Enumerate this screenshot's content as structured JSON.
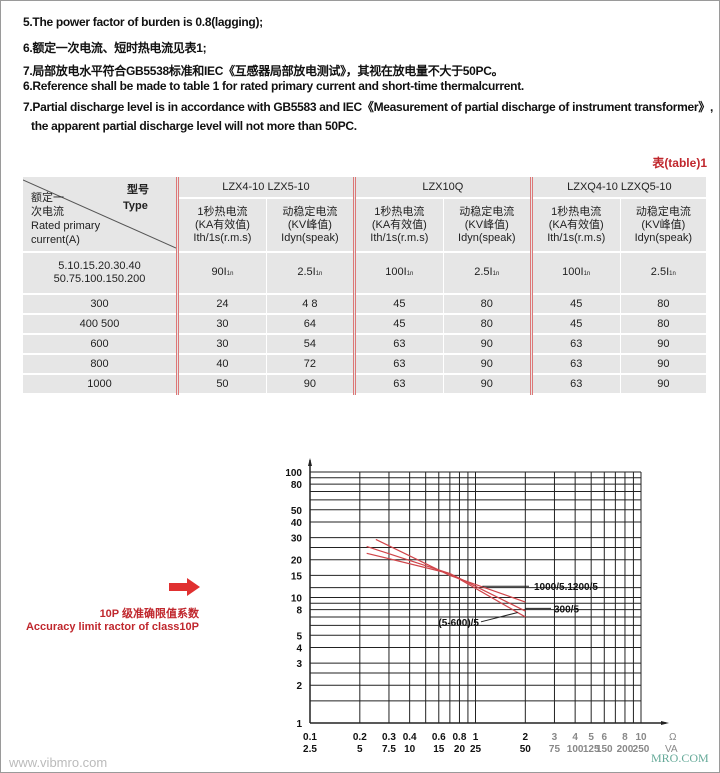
{
  "notes": [
    "5.The power factor of burden is 0.8(lagging);",
    "6.额定一次电流、短时热电流见表1;",
    "7.局部放电水平符合GB5538标准和IEC《互感器局部放电测试》，其视在放电量不大于50PC。",
    "6.Reference shall be made to table 1 for rated primary current and short-time thermalcurrent.",
    "7.Partial discharge level is in accordance with GB5583 and IEC《Measurement of  partial discharge of instrument transformer》,",
    "the apparent partial discharge level will not more than 50PC."
  ],
  "table_label": "表(table)1",
  "table": {
    "corner": {
      "type_cn": "型号",
      "type_en": "Type",
      "cur_cn1": "额定一",
      "cur_cn2": "次电流",
      "cur_en1": "Rated primary",
      "cur_en2": "current(A)"
    },
    "groups": [
      "LZX4-10 LZX5-10",
      "LZX10Q",
      "LZXQ4-10 LZXQ5-10"
    ],
    "subheaders": [
      {
        "l1": "1秒热电流",
        "l2": "(KA有效值)",
        "l3": "Ith/1s(r.m.s)"
      },
      {
        "l1": "动稳定电流",
        "l2": "(KV峰值)",
        "l3": "Idyn(speak)"
      }
    ],
    "first_row": {
      "current1": "5.10.15.20.30.40",
      "current2": "50.75.100.150.200",
      "values": [
        [
          "90I",
          "1n"
        ],
        [
          "2.5I",
          "1n"
        ],
        [
          "100I",
          "1n"
        ],
        [
          "2.5I",
          "1n"
        ],
        [
          "100I",
          "1n"
        ],
        [
          "2.5I",
          "1n"
        ]
      ]
    },
    "rows": [
      {
        "current": "300",
        "values": [
          "24",
          "4 8",
          "45",
          "80",
          "45",
          "80"
        ]
      },
      {
        "current": "400  500",
        "values": [
          "30",
          "64",
          "45",
          "80",
          "45",
          "80"
        ]
      },
      {
        "current": "600",
        "values": [
          "30",
          "54",
          "63",
          "90",
          "63",
          "90"
        ]
      },
      {
        "current": "800",
        "values": [
          "40",
          "72",
          "63",
          "90",
          "63",
          "90"
        ]
      },
      {
        "current": "1000",
        "values": [
          "50",
          "90",
          "63",
          "90",
          "63",
          "90"
        ]
      }
    ]
  },
  "chart_data": {
    "type": "line",
    "title": "",
    "xscale": "log",
    "yscale": "log",
    "xlim": [
      0.1,
      10
    ],
    "ylim": [
      1,
      100
    ],
    "grid": true,
    "y_ticks": [
      "1",
      "2",
      "3",
      "4",
      "5",
      "8",
      "10",
      "15",
      "20",
      "30",
      "40",
      "50",
      "80",
      "100"
    ],
    "x_ticks_ohm": [
      "0.1",
      "0.2",
      "0.3",
      "0.4",
      "0.6",
      "0.8",
      "1",
      "2",
      "3",
      "4",
      "5",
      "6",
      "8",
      "10"
    ],
    "x_ticks_va": [
      "2.5",
      "5",
      "7.5",
      "10",
      "15",
      "20",
      "25",
      "50",
      "75",
      "100",
      "125",
      "150",
      "200",
      "250"
    ],
    "x_unit_ohm": "Ω",
    "x_unit_va": "VA",
    "series": [
      {
        "name": "1000/5.1200/5",
        "x": [
          0.25,
          0.7,
          2
        ],
        "y": [
          29,
          15,
          9.2
        ]
      },
      {
        "name": "300/5",
        "x": [
          0.22,
          0.7,
          2
        ],
        "y": [
          25.5,
          15.5,
          7.8
        ]
      },
      {
        "name": "(5-600)/5",
        "x": [
          0.22,
          0.7,
          2
        ],
        "y": [
          22.5,
          15.5,
          7
        ]
      }
    ],
    "line_color": "#d0454a"
  },
  "side_label": {
    "cn": "10P 级准确限值系数",
    "en": "Accuracy limit ractor of class10P"
  },
  "watermark": "www.vibmro.com",
  "watermark2": "MRO.COM"
}
